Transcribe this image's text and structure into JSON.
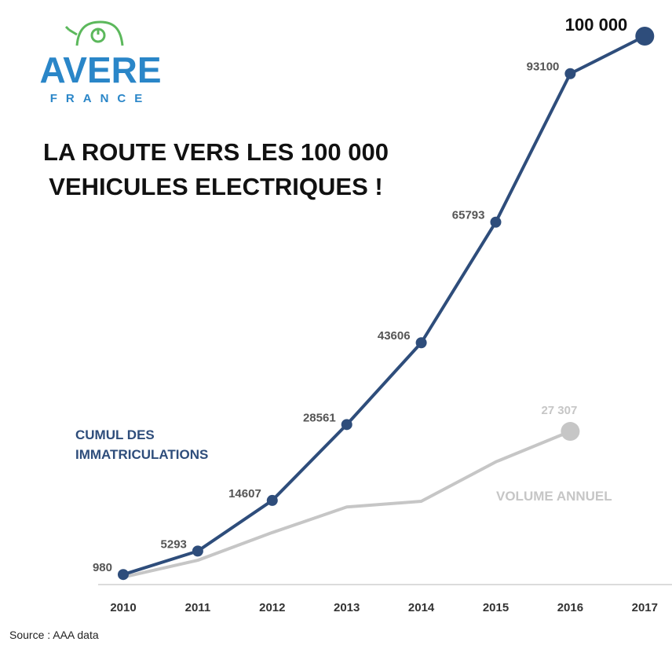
{
  "logo": {
    "name": "AVERE",
    "country": "FRANCE"
  },
  "source": "Source : AAA data",
  "chart_data": {
    "type": "line",
    "title": "LA ROUTE VERS LES 100 000 VEHICULES ELECTRIQUES !",
    "categories": [
      "2010",
      "2011",
      "2012",
      "2013",
      "2014",
      "2015",
      "2016",
      "2017"
    ],
    "ylim": [
      0,
      100000
    ],
    "series": [
      {
        "name": "CUMUL DES IMMATRICULATIONS",
        "color": "#2e4d7b",
        "markers": "all",
        "values": [
          980,
          5293,
          14607,
          28561,
          43606,
          65793,
          93100,
          100000
        ],
        "value_labels": [
          "980",
          "5293",
          "14607",
          "28561",
          "43606",
          "65793",
          "93100",
          "100 000"
        ]
      },
      {
        "name": "VOLUME ANNUEL",
        "color": "#c6c6c6",
        "markers": "last",
        "values": [
          500,
          3600,
          8700,
          13400,
          14450,
          21700,
          27307,
          null
        ],
        "value_labels": [
          null,
          null,
          null,
          null,
          null,
          null,
          "27 307",
          null
        ]
      }
    ]
  }
}
